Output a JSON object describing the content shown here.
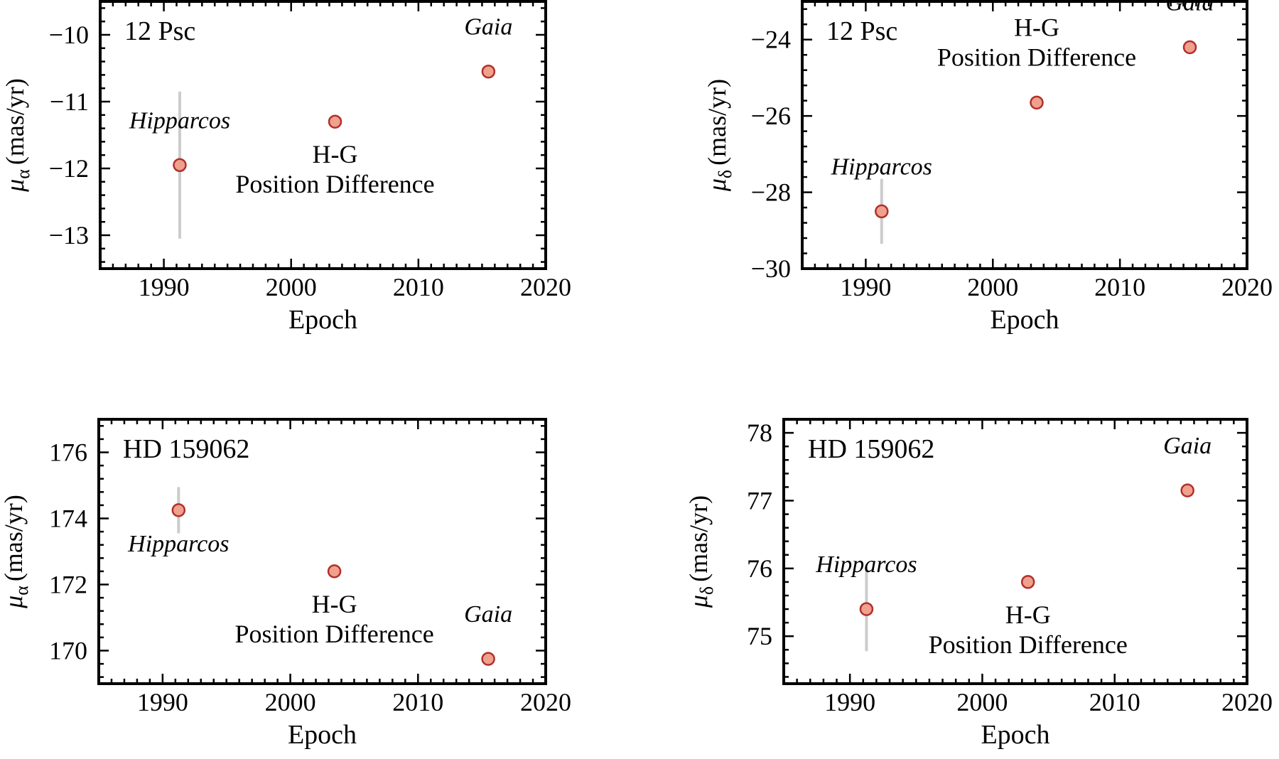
{
  "colors": {
    "marker_fill": "#f0a08c",
    "marker_edge": "#b0302c",
    "errorbar": "#cccccc",
    "frame": "#000000"
  },
  "chart_data": [
    {
      "type": "scatter",
      "panel_label": "12 Psc",
      "xlabel": "Epoch",
      "ylabel": "μα (mas/yr)",
      "ylabel_symbol": "μ",
      "ylabel_sub": "α",
      "ylabel_unit": "(mas/yr)",
      "xlim": [
        1985,
        2020
      ],
      "ylim": [
        -13.5,
        -9.5
      ],
      "xticks": [
        1990,
        2000,
        2010,
        2020
      ],
      "yticks": [
        -13,
        -12,
        -11,
        -10
      ],
      "xtick_labels": [
        "1990",
        "2000",
        "2010",
        "2020"
      ],
      "ytick_labels": [
        "−13",
        "−12",
        "−11",
        "−10"
      ],
      "points": [
        {
          "label": "Hipparcos",
          "italic": true,
          "x": 1991.25,
          "y": -11.95,
          "err": 1.1,
          "label_pos": "above"
        },
        {
          "label": "H-G\nPosition Difference",
          "italic": false,
          "x": 2003.45,
          "y": -11.3,
          "err": 0,
          "label_pos": "below"
        },
        {
          "label": "Gaia",
          "italic": true,
          "x": 2015.5,
          "y": -10.55,
          "err": 0,
          "label_pos": "above"
        }
      ]
    },
    {
      "type": "scatter",
      "panel_label": "12 Psc",
      "xlabel": "Epoch",
      "ylabel": "μδ (mas/yr)",
      "ylabel_symbol": "μ",
      "ylabel_sub": "δ",
      "ylabel_unit": "(mas/yr)",
      "xlim": [
        1985,
        2020
      ],
      "ylim": [
        -30,
        -23
      ],
      "xticks": [
        1990,
        2000,
        2010,
        2020
      ],
      "yticks": [
        -30,
        -28,
        -26,
        -24
      ],
      "xtick_labels": [
        "1990",
        "2000",
        "2010",
        "2020"
      ],
      "ytick_labels": [
        "−30",
        "−28",
        "−26",
        "−24"
      ],
      "points": [
        {
          "label": "Hipparcos",
          "italic": true,
          "x": 1991.25,
          "y": -28.5,
          "err": 0.85,
          "label_pos": "above"
        },
        {
          "label": "H-G\nPosition Difference",
          "italic": false,
          "x": 2003.45,
          "y": -25.65,
          "err": 0,
          "label_pos": "above"
        },
        {
          "label": "Gaia",
          "italic": true,
          "x": 2015.5,
          "y": -24.2,
          "err": 0,
          "label_pos": "above"
        }
      ]
    },
    {
      "type": "scatter",
      "panel_label": "HD 159062",
      "xlabel": "Epoch",
      "ylabel": "μα (mas/yr)",
      "ylabel_symbol": "μ",
      "ylabel_sub": "α",
      "ylabel_unit": "(mas/yr)",
      "xlim": [
        1985,
        2020
      ],
      "ylim": [
        169,
        177
      ],
      "xticks": [
        1990,
        2000,
        2010,
        2020
      ],
      "yticks": [
        170,
        172,
        174,
        176
      ],
      "xtick_labels": [
        "1990",
        "2000",
        "2010",
        "2020"
      ],
      "ytick_labels": [
        "170",
        "172",
        "174",
        "176"
      ],
      "points": [
        {
          "label": "Hipparcos",
          "italic": true,
          "x": 1991.25,
          "y": 174.25,
          "err": 0.7,
          "label_pos": "below"
        },
        {
          "label": "H-G\nPosition Difference",
          "italic": false,
          "x": 2003.45,
          "y": 172.4,
          "err": 0,
          "label_pos": "below"
        },
        {
          "label": "Gaia",
          "italic": true,
          "x": 2015.5,
          "y": 169.75,
          "err": 0,
          "label_pos": "above"
        }
      ]
    },
    {
      "type": "scatter",
      "panel_label": "HD 159062",
      "xlabel": "Epoch",
      "ylabel": "μδ (mas/yr)",
      "ylabel_symbol": "μ",
      "ylabel_sub": "δ",
      "ylabel_unit": "(mas/yr)",
      "xlim": [
        1985,
        2020
      ],
      "ylim": [
        74.3,
        78.2
      ],
      "xticks": [
        1990,
        2000,
        2010,
        2020
      ],
      "yticks": [
        75,
        76,
        77,
        78
      ],
      "xtick_labels": [
        "1990",
        "2000",
        "2010",
        "2020"
      ],
      "ytick_labels": [
        "75",
        "76",
        "77",
        "78"
      ],
      "points": [
        {
          "label": "Hipparcos",
          "italic": true,
          "x": 1991.25,
          "y": 75.4,
          "err": 0.62,
          "label_pos": "above"
        },
        {
          "label": "H-G\nPosition Difference",
          "italic": false,
          "x": 2003.45,
          "y": 75.8,
          "err": 0,
          "label_pos": "below"
        },
        {
          "label": "Gaia",
          "italic": true,
          "x": 2015.5,
          "y": 77.15,
          "err": 0,
          "label_pos": "above"
        }
      ]
    }
  ]
}
